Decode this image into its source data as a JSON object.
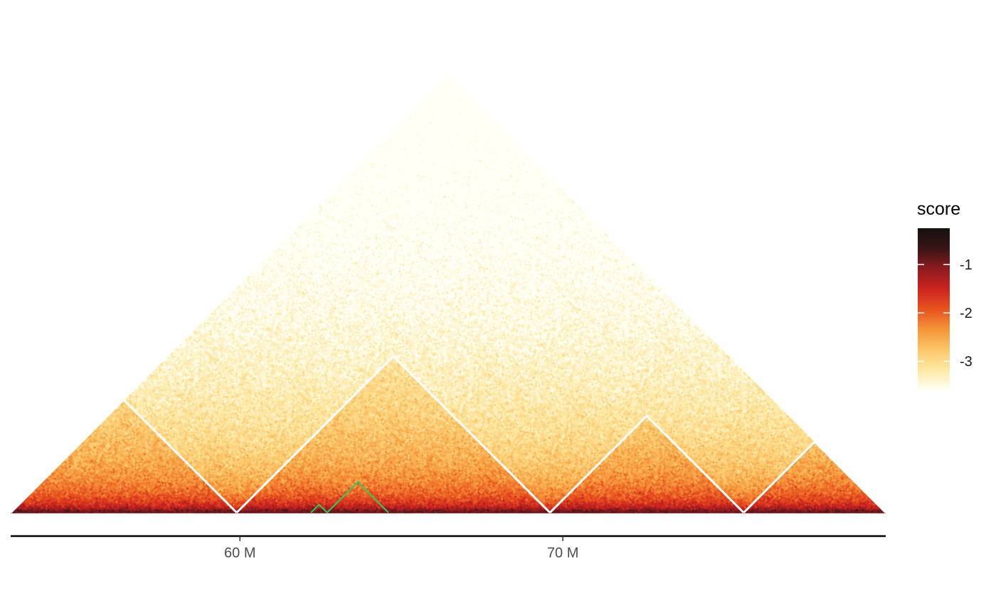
{
  "chart_data": {
    "type": "heatmap",
    "subtype": "hic-triangle",
    "title": "",
    "xlabel": "",
    "ylabel": "",
    "x_axis": {
      "unit": "Mb",
      "range": [
        52.9,
        80.0
      ],
      "ticks": [
        {
          "value": 60,
          "label": "60 M"
        },
        {
          "value": 70,
          "label": "70 M"
        }
      ]
    },
    "color_scale": {
      "title": "score",
      "range": [
        -3.6,
        -0.25
      ],
      "ticks": [
        {
          "value": -1,
          "label": "-1"
        },
        {
          "value": -2,
          "label": "-2"
        },
        {
          "value": -3,
          "label": "-3"
        }
      ],
      "colors": [
        "#fffff5",
        "#fde9a5",
        "#fbc76a",
        "#f5953a",
        "#e8531f",
        "#cc2420",
        "#8e1b1f",
        "#3a1416",
        "#14110f"
      ]
    },
    "heatmap": {
      "bins": 320,
      "diagonal_score": -0.9,
      "far_score": -3.3
    },
    "domains": [
      {
        "start": 52.9,
        "end": 59.9
      },
      {
        "start": 59.9,
        "end": 69.6
      },
      {
        "start": 69.6,
        "end": 75.6
      },
      {
        "start": 75.6,
        "end": 80.0
      }
    ],
    "highlight_domains": [
      {
        "start": 62.2,
        "end": 62.7
      },
      {
        "start": 62.7,
        "end": 64.6
      }
    ],
    "colors": {
      "domain_outline": "#ffffff",
      "highlight_outline": "#2ecc5a",
      "axis_line": "#000000"
    }
  }
}
